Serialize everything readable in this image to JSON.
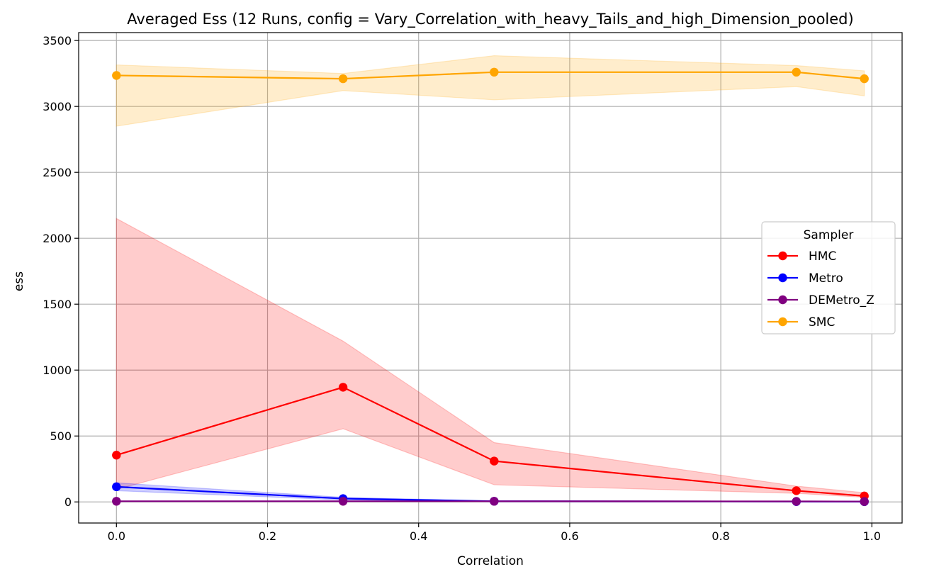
{
  "chart_data": {
    "type": "line",
    "title": "Averaged Ess (12 Runs, config = Vary_Correlation_with_heavy_Tails_and_high_Dimension_pooled)",
    "xlabel": "Correlation",
    "ylabel": "ess",
    "xlim": [
      -0.05,
      1.04
    ],
    "ylim": [
      -160,
      3560
    ],
    "xticks": [
      0.0,
      0.2,
      0.4,
      0.6,
      0.8,
      1.0
    ],
    "xtick_labels": [
      "0.0",
      "0.2",
      "0.4",
      "0.6",
      "0.8",
      "1.0"
    ],
    "yticks": [
      0,
      500,
      1000,
      1500,
      2000,
      2500,
      3000,
      3500
    ],
    "ytick_labels": [
      "0",
      "500",
      "1000",
      "1500",
      "2000",
      "2500",
      "3000",
      "3500"
    ],
    "grid": true,
    "legend": {
      "title": "Sampler",
      "placement": "center-right"
    },
    "x": [
      0.0,
      0.3,
      0.5,
      0.9,
      0.99
    ],
    "series": [
      {
        "name": "HMC",
        "color": "#ff0000",
        "values": [
          355,
          870,
          310,
          85,
          45
        ],
        "lower": [
          95,
          555,
          130,
          65,
          35
        ],
        "upper": [
          2150,
          1220,
          450,
          120,
          70
        ]
      },
      {
        "name": "Metro",
        "color": "#0000ff",
        "values": [
          115,
          25,
          5,
          3,
          2
        ],
        "lower": [
          85,
          15,
          3,
          2,
          1
        ],
        "upper": [
          145,
          35,
          8,
          4,
          3
        ]
      },
      {
        "name": "DEMetro_Z",
        "color": "#800080",
        "values": [
          5,
          5,
          5,
          4,
          3
        ],
        "lower": [
          3,
          3,
          3,
          2,
          2
        ],
        "upper": [
          8,
          8,
          8,
          6,
          5
        ]
      },
      {
        "name": "SMC",
        "color": "#ffa500",
        "values": [
          3235,
          3210,
          3260,
          3260,
          3210
        ],
        "lower": [
          2850,
          3120,
          3050,
          3150,
          3080
        ],
        "upper": [
          3315,
          3250,
          3385,
          3310,
          3270
        ]
      }
    ]
  }
}
